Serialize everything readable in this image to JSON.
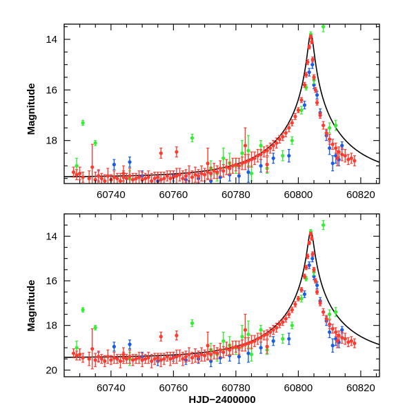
{
  "chart_data": [
    {
      "type": "scatter",
      "panel": "top",
      "title": "",
      "xlabel": "",
      "ylabel": "Magnitude",
      "xlim": [
        60725,
        60826
      ],
      "ylim": [
        19.7,
        13.4
      ],
      "y_inverted": true,
      "xticks": [
        60740,
        60760,
        60780,
        60800,
        60820
      ],
      "xtick_labels": [
        "60740",
        "60760",
        "60780",
        "60800",
        "60820"
      ],
      "yticks": [
        14,
        16,
        18
      ],
      "ytick_labels": [
        "14",
        "16",
        "18"
      ],
      "series": [
        {
          "color": "#ff3b30",
          "role": "observations (red)"
        },
        {
          "color": "#1a5ce6",
          "role": "observations (blue)"
        },
        {
          "color": "#33ee33",
          "role": "observations (green)"
        },
        {
          "color": "#000000",
          "role": "model curve"
        }
      ]
    },
    {
      "type": "scatter",
      "panel": "bottom",
      "title": "",
      "xlabel": "HJD−2400000",
      "ylabel": "Magnitude",
      "xlim": [
        60725,
        60826
      ],
      "ylim": [
        20.3,
        13.0
      ],
      "y_inverted": true,
      "xticks": [
        60740,
        60760,
        60780,
        60800,
        60820
      ],
      "xtick_labels": [
        "60740",
        "60760",
        "60780",
        "60800",
        "60820"
      ],
      "yticks": [
        14,
        16,
        18,
        20
      ],
      "ytick_labels": [
        "14",
        "16",
        "18",
        "20"
      ],
      "series": [
        {
          "color": "#ff3b30",
          "role": "observations (red)"
        },
        {
          "color": "#1a5ce6",
          "role": "observations (blue)"
        },
        {
          "color": "#33ee33",
          "role": "observations (green)"
        },
        {
          "color": "#000000",
          "role": "model curve"
        }
      ]
    }
  ],
  "model": {
    "t0": 60804.0,
    "peak_mag": 13.75,
    "baseline_mag": 19.45,
    "u0": 0.037,
    "tE": 24.0
  },
  "observations": {
    "red": [
      [
        60728,
        19.25,
        0.2
      ],
      [
        60729,
        19.35,
        0.2
      ],
      [
        60730,
        19.3,
        0.25
      ],
      [
        60731,
        19.45,
        0.2
      ],
      [
        60733,
        19.5,
        0.3
      ],
      [
        60734,
        19.05,
        0.9
      ],
      [
        60735,
        19.55,
        0.3
      ],
      [
        60736,
        19.4,
        0.25
      ],
      [
        60737,
        19.5,
        0.2
      ],
      [
        60738,
        19.6,
        0.25
      ],
      [
        60739,
        19.4,
        0.3
      ],
      [
        60740,
        19.55,
        0.2
      ],
      [
        60741,
        19.45,
        0.25
      ],
      [
        60742,
        19.5,
        0.2
      ],
      [
        60743,
        19.6,
        0.3
      ],
      [
        60744,
        19.45,
        0.25
      ],
      [
        60745,
        19.5,
        0.2
      ],
      [
        60746,
        19.4,
        0.3
      ],
      [
        60747,
        19.55,
        0.25
      ],
      [
        60748,
        19.5,
        0.2
      ],
      [
        60749,
        19.45,
        0.25
      ],
      [
        60750,
        19.55,
        0.3
      ],
      [
        60751,
        19.5,
        0.2
      ],
      [
        60752,
        19.45,
        0.25
      ],
      [
        60753,
        19.6,
        0.3
      ],
      [
        60754,
        19.5,
        0.25
      ],
      [
        60755,
        19.45,
        0.2
      ],
      [
        60756,
        19.55,
        0.3
      ],
      [
        60757,
        19.5,
        0.25
      ],
      [
        60758,
        19.4,
        0.2
      ],
      [
        60759,
        19.5,
        0.3
      ],
      [
        60760,
        19.45,
        0.25
      ],
      [
        60761,
        19.4,
        0.3
      ],
      [
        60762,
        19.35,
        0.25
      ],
      [
        60763,
        19.5,
        0.3
      ],
      [
        60764,
        19.4,
        0.25
      ],
      [
        60765,
        19.3,
        0.3
      ],
      [
        60766,
        19.45,
        0.25
      ],
      [
        60767,
        19.35,
        0.3
      ],
      [
        60768,
        19.4,
        0.25
      ],
      [
        60769,
        19.3,
        0.3
      ],
      [
        60770,
        19.35,
        0.25
      ],
      [
        60771,
        19.25,
        0.3
      ],
      [
        60772,
        19.3,
        0.25
      ],
      [
        60773,
        19.2,
        0.3
      ],
      [
        60774,
        19.25,
        0.25
      ],
      [
        60775,
        19.1,
        0.3
      ],
      [
        60776,
        19.2,
        0.25
      ],
      [
        60777,
        19.05,
        0.3
      ],
      [
        60778,
        19.1,
        0.25
      ],
      [
        60779,
        19.0,
        0.3
      ],
      [
        60780,
        18.95,
        0.25
      ],
      [
        60781,
        19.0,
        0.3
      ],
      [
        60782,
        18.9,
        0.25
      ],
      [
        60783,
        18.85,
        0.3
      ],
      [
        60784,
        18.8,
        0.25
      ],
      [
        60785,
        18.75,
        0.3
      ],
      [
        60786,
        18.7,
        0.25
      ],
      [
        60787,
        18.6,
        0.25
      ],
      [
        60788,
        18.55,
        0.2
      ],
      [
        60789,
        18.45,
        0.2
      ],
      [
        60790,
        18.4,
        0.2
      ],
      [
        60791,
        18.3,
        0.2
      ],
      [
        60792,
        18.2,
        0.2
      ],
      [
        60793,
        18.1,
        0.2
      ],
      [
        60794,
        17.95,
        0.15
      ],
      [
        60795,
        17.85,
        0.15
      ],
      [
        60796,
        17.7,
        0.15
      ],
      [
        60797,
        17.5,
        0.15
      ],
      [
        60798,
        17.3,
        0.12
      ],
      [
        60799,
        17.05,
        0.12
      ],
      [
        60800,
        16.8,
        0.1
      ],
      [
        60801,
        16.4,
        0.1
      ],
      [
        60802,
        15.8,
        0.1
      ],
      [
        60802.5,
        15.4,
        0.1
      ],
      [
        60803,
        14.9,
        0.1
      ],
      [
        60803.5,
        14.3,
        0.08
      ],
      [
        60804,
        13.9,
        0.08
      ],
      [
        60804.3,
        14.1,
        0.08
      ],
      [
        60804.6,
        14.8,
        0.1
      ],
      [
        60805,
        15.5,
        0.1
      ],
      [
        60805.5,
        16.0,
        0.1
      ],
      [
        60806,
        16.5,
        0.1
      ],
      [
        60807,
        17.0,
        0.12
      ],
      [
        60808,
        17.4,
        0.15
      ],
      [
        60809,
        17.7,
        0.15
      ],
      [
        60810,
        17.95,
        0.2
      ],
      [
        60811,
        18.15,
        0.2
      ],
      [
        60812,
        18.3,
        0.2
      ],
      [
        60813,
        18.45,
        0.2
      ],
      [
        60814,
        18.55,
        0.25
      ],
      [
        60815,
        18.6,
        0.25
      ],
      [
        60816,
        18.75,
        0.2
      ],
      [
        60817,
        18.7,
        0.2
      ],
      [
        60818,
        18.8,
        0.2
      ],
      [
        60812.5,
        18.7,
        0.3
      ],
      [
        60744,
        19.3,
        0.3
      ],
      [
        60761,
        18.45,
        0.2
      ],
      [
        60771,
        18.9,
        0.6
      ],
      [
        60783,
        18.2,
        0.7
      ],
      [
        60790,
        18.95,
        0.3
      ],
      [
        60756,
        18.5,
        0.2
      ]
    ],
    "blue": [
      [
        60736,
        19.4,
        0.2
      ],
      [
        60741,
        18.95,
        0.2
      ],
      [
        60746,
        18.85,
        0.2
      ],
      [
        60750,
        19.4,
        0.2
      ],
      [
        60755,
        19.6,
        0.2
      ],
      [
        60760,
        19.4,
        0.2
      ],
      [
        60764,
        19.55,
        0.2
      ],
      [
        60768,
        19.5,
        0.2
      ],
      [
        60772,
        19.6,
        0.25
      ],
      [
        60775,
        19.45,
        0.25
      ],
      [
        60778,
        19.35,
        0.25
      ],
      [
        60781,
        19.4,
        0.3
      ],
      [
        60784,
        19.25,
        0.4
      ],
      [
        60788,
        19.0,
        0.25
      ],
      [
        60792,
        18.7,
        0.2
      ],
      [
        60797,
        18.6,
        0.25
      ],
      [
        60802,
        16.6,
        0.15
      ],
      [
        60803.5,
        15.3,
        0.15
      ],
      [
        60804.5,
        15.0,
        0.15
      ],
      [
        60805,
        15.8,
        0.15
      ],
      [
        60806,
        16.2,
        0.15
      ],
      [
        60807,
        16.9,
        0.15
      ],
      [
        60809,
        17.8,
        0.2
      ],
      [
        60810,
        18.3,
        0.25
      ],
      [
        60811,
        18.9,
        0.3
      ],
      [
        60812,
        18.6,
        0.3
      ],
      [
        60813,
        18.75,
        0.25
      ],
      [
        60814,
        18.2,
        0.15
      ]
    ],
    "green": [
      [
        60729,
        19.0,
        0.3
      ],
      [
        60731,
        17.3,
        0.1
      ],
      [
        60735,
        18.1,
        0.1
      ],
      [
        60746,
        19.5,
        0.3
      ],
      [
        60766,
        17.9,
        0.15
      ],
      [
        60772,
        19.1,
        0.3
      ],
      [
        60774,
        19.3,
        0.3
      ],
      [
        60776,
        18.7,
        0.4
      ],
      [
        60778,
        18.9,
        0.4
      ],
      [
        60780,
        19.0,
        0.3
      ],
      [
        60782,
        18.5,
        0.5
      ],
      [
        60784,
        18.4,
        0.6
      ],
      [
        60785,
        19.3,
        0.3
      ],
      [
        60788,
        18.2,
        0.2
      ],
      [
        60790,
        19.1,
        0.2
      ],
      [
        60795,
        18.6,
        0.2
      ],
      [
        60798,
        18.0,
        0.15
      ],
      [
        60801,
        16.8,
        0.15
      ],
      [
        60802.5,
        15.9,
        0.1
      ],
      [
        60804,
        13.8,
        0.1
      ],
      [
        60805,
        15.6,
        0.15
      ],
      [
        60808,
        13.5,
        0.2
      ],
      [
        60810,
        17.5,
        0.2
      ],
      [
        60812,
        17.4,
        0.2
      ]
    ]
  }
}
